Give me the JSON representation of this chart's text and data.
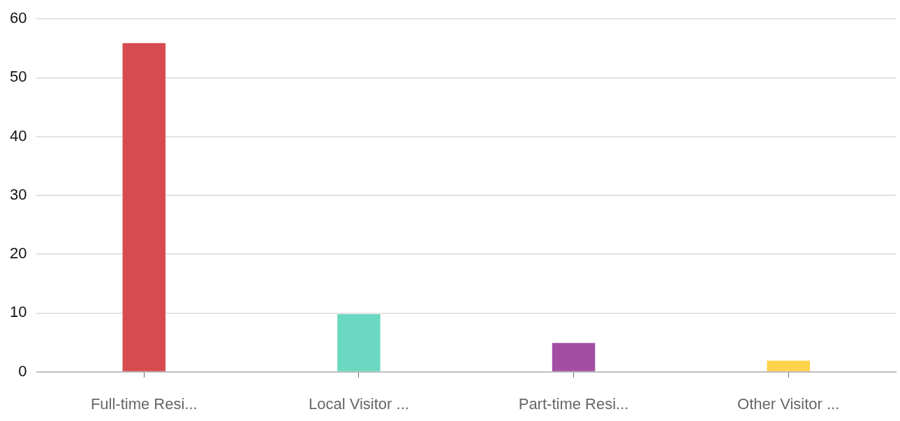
{
  "chart_data": {
    "type": "bar",
    "categories": [
      "Full-time Resi...",
      "Local Visitor ...",
      "Part-time Resi...",
      "Other Visitor ..."
    ],
    "values": [
      55.9,
      9.8,
      4.9,
      1.9
    ],
    "colors": [
      "#d64b4f",
      "#6ad8c0",
      "#a34ea3",
      "#fdd34b"
    ],
    "ylim": [
      0,
      60
    ],
    "yticks": [
      0,
      10,
      20,
      30,
      40,
      50,
      60
    ],
    "grid": "y",
    "legend": false
  }
}
